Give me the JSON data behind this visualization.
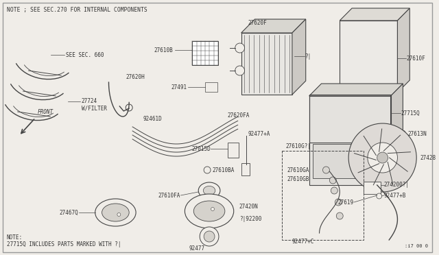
{
  "bg_color": "#f0ede8",
  "border_color": "#999999",
  "line_color": "#444444",
  "text_color": "#333333",
  "title_note": "NOTE ; SEE SEC.270 FOR INTERNAL COMPONENTS",
  "note2_line1": "NOTE:",
  "note2_line2": "27715Q INCLUDES PARTS MARKED WITH ?|",
  "ref_code": ":i7 00 0",
  "figsize": [
    6.4,
    3.72
  ],
  "dpi": 100
}
